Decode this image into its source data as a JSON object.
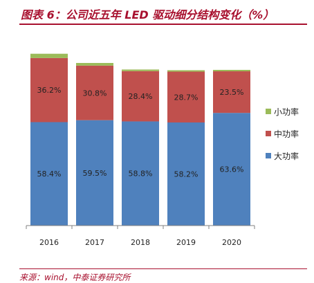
{
  "title": "图表 6：公司近五年 LED 驱动细分结构变化（%）",
  "source": "来源：wind，中泰证券研究所",
  "colors": {
    "large": "#4f81bd",
    "medium": "#c0504d",
    "small": "#9bbb59",
    "title": "#a8102e"
  },
  "chart_data": {
    "type": "bar",
    "stacked": true,
    "categories": [
      "2016",
      "2017",
      "2018",
      "2019",
      "2020"
    ],
    "series": [
      {
        "name": "大功率",
        "values": [
          58.4,
          59.5,
          58.8,
          58.2,
          63.6
        ],
        "labels": [
          "58.4%",
          "59.5%",
          "58.8%",
          "58.2%",
          "63.6%"
        ]
      },
      {
        "name": "中功率",
        "values": [
          36.2,
          30.8,
          28.4,
          28.7,
          23.5
        ],
        "labels": [
          "36.2%",
          "30.8%",
          "28.4%",
          "28.7%",
          "23.5%"
        ]
      },
      {
        "name": "小功率",
        "values": [
          2.4,
          1.5,
          0.9,
          0.8,
          0.8
        ]
      }
    ],
    "ylim": [
      0,
      100
    ],
    "legend_position": "right",
    "legend_order": [
      "小功率",
      "中功率",
      "大功率"
    ]
  }
}
